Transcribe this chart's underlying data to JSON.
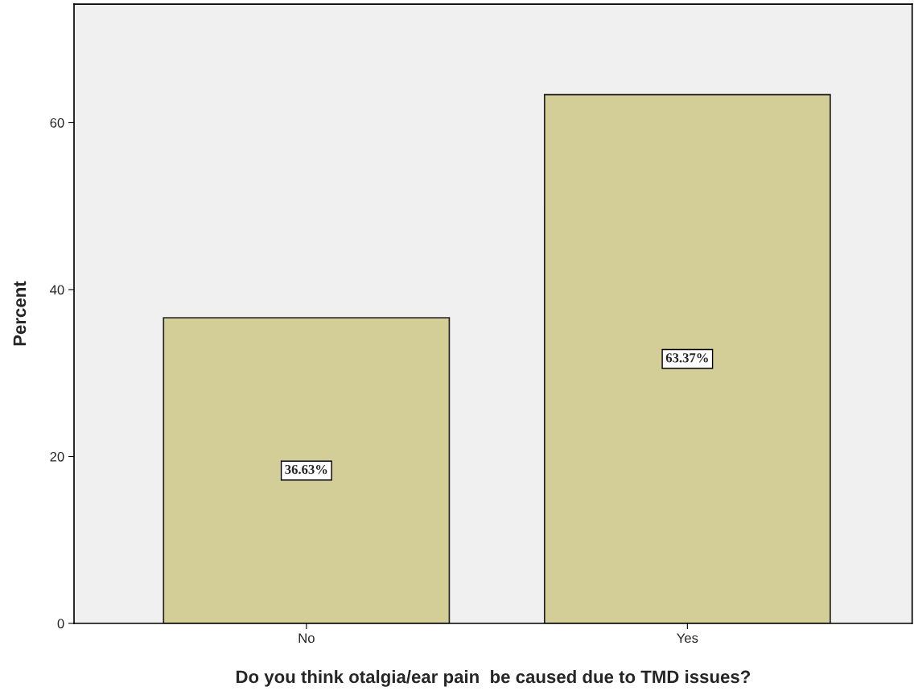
{
  "chart_data": {
    "type": "bar",
    "xlabel": "Do you think otalgia/ear pain  be caused due to TMD issues?",
    "ylabel": "Percent",
    "categories": [
      "No",
      "Yes"
    ],
    "values": [
      36.63,
      63.37
    ],
    "value_labels": [
      "36.63%",
      "63.37%"
    ],
    "color": "#d3ce97",
    "ylim": [
      0,
      74.2
    ],
    "yticks": [
      0,
      20,
      40,
      60
    ],
    "grid": false
  }
}
